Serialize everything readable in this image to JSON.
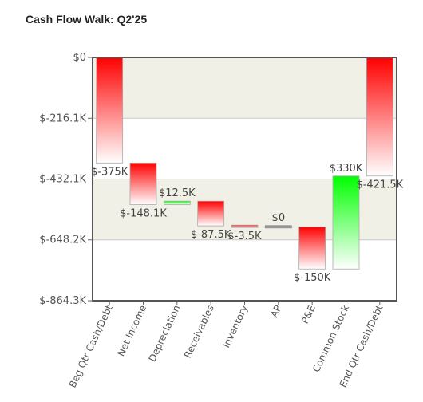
{
  "title": "Cash Flow Walk: Q2'25",
  "chart_data": {
    "type": "waterfall",
    "title": "Cash Flow Walk: Q2'25",
    "ylim": [
      -864.3,
      0
    ],
    "y_unit": "$K",
    "y_ticks": [
      0,
      -216.1,
      -432.1,
      -648.2,
      -864.3
    ],
    "y_tick_labels": [
      "$0",
      "$-216.1K",
      "$-432.1K",
      "$-648.2K",
      "$-864.3K"
    ],
    "grid": true,
    "colors": {
      "negative": "#ff0000",
      "positive": "#00ff00",
      "zero": "#888888",
      "band": "#f0f0e6"
    },
    "bars": [
      {
        "category": "Beg Qtr Cash/Debt",
        "value": -375,
        "label": "$-375K",
        "kind": "total"
      },
      {
        "category": "Net Income",
        "value": -148.1,
        "label": "$-148.1K",
        "kind": "delta"
      },
      {
        "category": "Depreciation",
        "value": 12.5,
        "label": "$12.5K",
        "kind": "delta"
      },
      {
        "category": "Receivables",
        "value": -87.5,
        "label": "$-87.5K",
        "kind": "delta"
      },
      {
        "category": "Inventory",
        "value": -3.5,
        "label": "$-3.5K",
        "kind": "delta"
      },
      {
        "category": "AP",
        "value": 0,
        "label": "$0",
        "kind": "delta"
      },
      {
        "category": "P&E",
        "value": -150,
        "label": "$-150K",
        "kind": "delta"
      },
      {
        "category": "Common Stock",
        "value": 330,
        "label": "$330K",
        "kind": "delta"
      },
      {
        "category": "End Qtr Cash/Debt",
        "value": -421.5,
        "label": "$-421.5K",
        "kind": "total"
      }
    ]
  }
}
